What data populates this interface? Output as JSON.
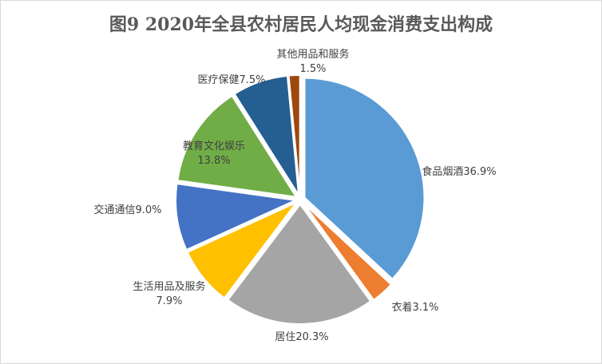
{
  "chart_data": {
    "type": "pie",
    "title": "图9  2020年全县农村居民人均现金消费支出构成",
    "categories": [
      "食品烟酒",
      "衣着",
      "居住",
      "生活用品及服务",
      "交通通信",
      "教育文化娱乐",
      "医疗保健",
      "其他用品和服务"
    ],
    "values": [
      36.9,
      3.1,
      20.3,
      7.9,
      9.0,
      13.8,
      7.5,
      1.5
    ],
    "value_labels": [
      "36.9%",
      "3.1%",
      "20.3%",
      "7.9%",
      "9.0%",
      "13.8%",
      "7.5%",
      "1.5%"
    ],
    "colors": [
      "#5b9bd5",
      "#ed7d31",
      "#a5a5a5",
      "#ffc000",
      "#4472c4",
      "#70ad47",
      "#255e91",
      "#9e480e"
    ]
  }
}
